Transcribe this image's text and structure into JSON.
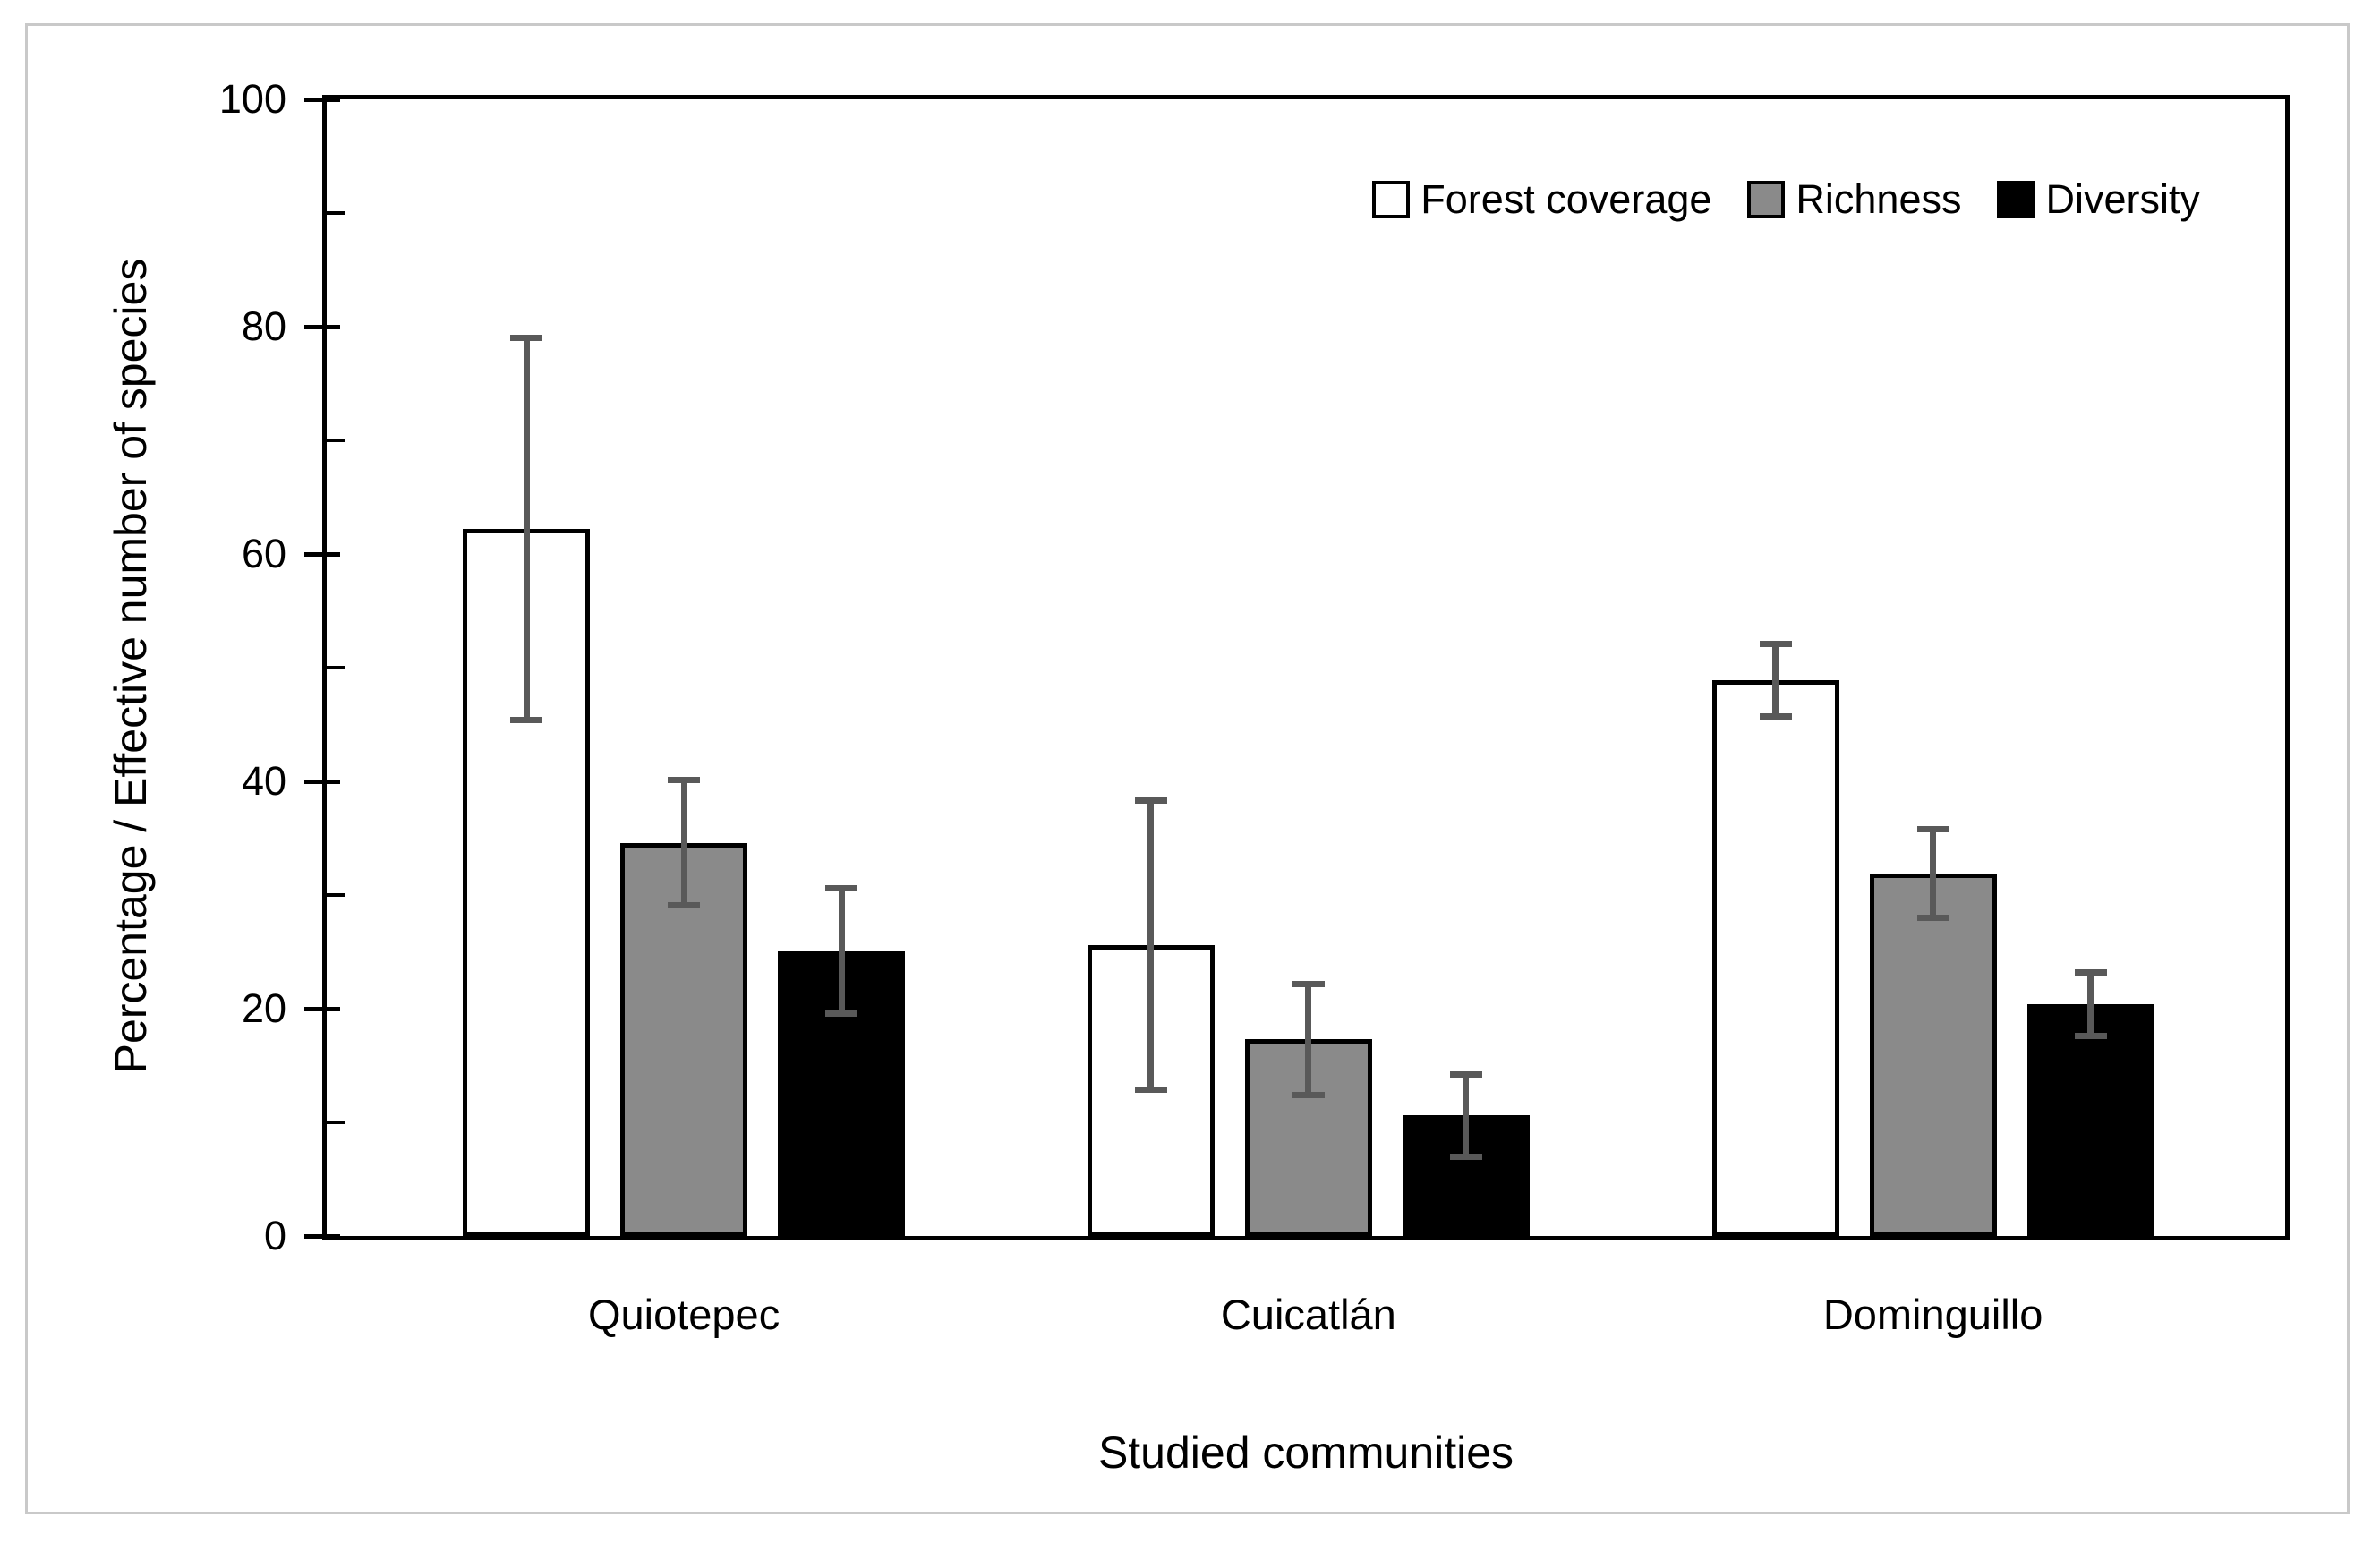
{
  "figure": {
    "background": "#FFFFFF",
    "frame_border_color": "#C9C9C9",
    "plot_border_color": "#000000"
  },
  "chart_data": {
    "type": "bar",
    "title": "",
    "xlabel": "Studied communities",
    "ylabel": "Percentage / Effective number of species",
    "ylim": [
      0,
      100
    ],
    "y_major_ticks": [
      0,
      20,
      40,
      60,
      80,
      100
    ],
    "y_minor_ticks": [
      10,
      30,
      50,
      70,
      90
    ],
    "grid": "off",
    "legend_position": "top-right-inside",
    "categories": [
      "Quiotepec",
      "Cuicatlán",
      "Dominguillo"
    ],
    "series": [
      {
        "name": "Forest coverage",
        "fill": "#FFFFFF",
        "values": [
          62.2,
          25.6,
          48.9
        ],
        "errors": [
          16.8,
          12.7,
          3.2
        ]
      },
      {
        "name": "Richness",
        "fill": "#8A8A8A",
        "values": [
          34.6,
          17.3,
          31.9
        ],
        "errors": [
          5.5,
          4.9,
          3.9
        ]
      },
      {
        "name": "Diversity",
        "fill": "#000000",
        "values": [
          25.1,
          10.6,
          20.4
        ],
        "errors": [
          5.5,
          3.6,
          2.8
        ]
      }
    ],
    "error_bar_color": "#595959",
    "bar_border_color": "#000000"
  }
}
